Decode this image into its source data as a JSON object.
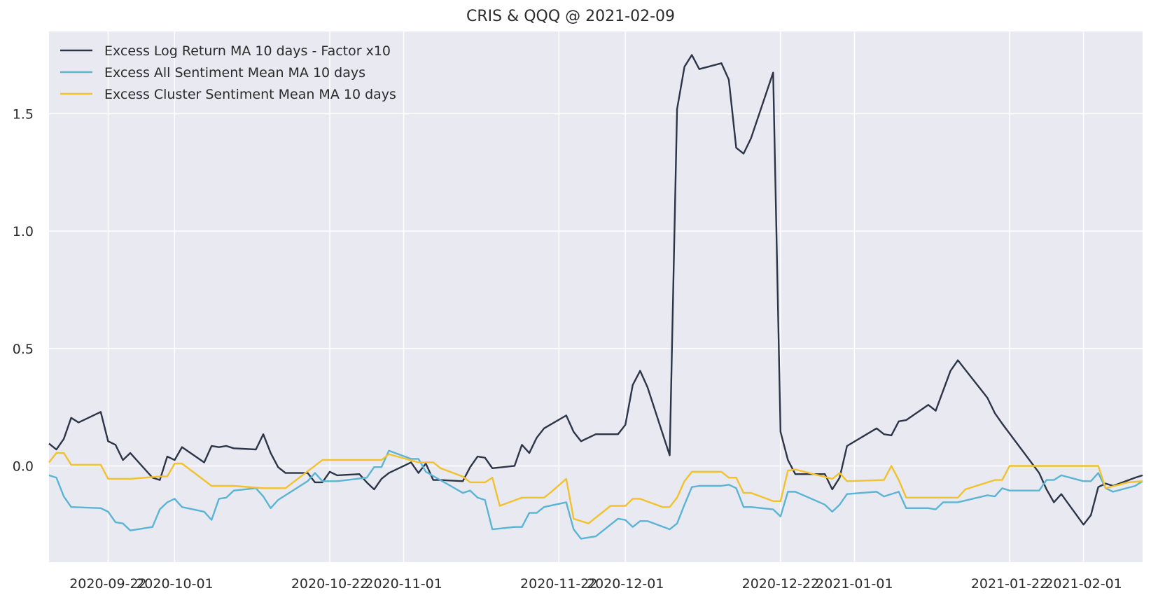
{
  "chart_data": {
    "type": "line",
    "title": "CRIS & QQQ @ 2021-02-09",
    "xlabel": "",
    "ylabel": "",
    "x_type": "date",
    "xlim": [
      "2020-09-14",
      "2021-02-09"
    ],
    "ylim": [
      -0.41,
      1.85
    ],
    "grid": true,
    "legend_position": "top-left",
    "x_ticks": [
      "2020-09-22",
      "2020-10-01",
      "2020-10-22",
      "2020-11-01",
      "2020-11-22",
      "2020-12-01",
      "2020-12-22",
      "2021-01-01",
      "2021-01-22",
      "2021-02-01"
    ],
    "y_ticks": [
      0.0,
      0.5,
      1.0,
      1.5
    ],
    "y_tick_labels": [
      "0.0",
      "0.5",
      "1.0",
      "1.5"
    ],
    "colors": {
      "plot_background": "#e9e9f1",
      "grid": "#ffffff"
    },
    "series": [
      {
        "name": "Excess Log Return MA 10 days - Factor x10",
        "color": "#2c3548",
        "points": [
          [
            "2020-09-14",
            0.095
          ],
          [
            "2020-09-15",
            0.07
          ],
          [
            "2020-09-16",
            0.115
          ],
          [
            "2020-09-17",
            0.205
          ],
          [
            "2020-09-18",
            0.185
          ],
          [
            "2020-09-21",
            0.23
          ],
          [
            "2020-09-22",
            0.105
          ],
          [
            "2020-09-23",
            0.09
          ],
          [
            "2020-09-24",
            0.025
          ],
          [
            "2020-09-25",
            0.055
          ],
          [
            "2020-09-28",
            -0.05
          ],
          [
            "2020-09-29",
            -0.06
          ],
          [
            "2020-09-30",
            0.04
          ],
          [
            "2020-10-01",
            0.025
          ],
          [
            "2020-10-02",
            0.08
          ],
          [
            "2020-10-05",
            0.015
          ],
          [
            "2020-10-06",
            0.085
          ],
          [
            "2020-10-07",
            0.08
          ],
          [
            "2020-10-08",
            0.085
          ],
          [
            "2020-10-09",
            0.075
          ],
          [
            "2020-10-12",
            0.07
          ],
          [
            "2020-10-13",
            0.135
          ],
          [
            "2020-10-14",
            0.055
          ],
          [
            "2020-10-15",
            -0.005
          ],
          [
            "2020-10-16",
            -0.03
          ],
          [
            "2020-10-19",
            -0.03
          ],
          [
            "2020-10-20",
            -0.07
          ],
          [
            "2020-10-21",
            -0.07
          ],
          [
            "2020-10-22",
            -0.025
          ],
          [
            "2020-10-23",
            -0.04
          ],
          [
            "2020-10-26",
            -0.035
          ],
          [
            "2020-10-27",
            -0.07
          ],
          [
            "2020-10-28",
            -0.1
          ],
          [
            "2020-10-29",
            -0.055
          ],
          [
            "2020-10-30",
            -0.03
          ],
          [
            "2020-11-02",
            0.015
          ],
          [
            "2020-11-03",
            -0.03
          ],
          [
            "2020-11-04",
            0.01
          ],
          [
            "2020-11-05",
            -0.06
          ],
          [
            "2020-11-06",
            -0.06
          ],
          [
            "2020-11-09",
            -0.065
          ],
          [
            "2020-11-10",
            -0.005
          ],
          [
            "2020-11-11",
            0.04
          ],
          [
            "2020-11-12",
            0.035
          ],
          [
            "2020-11-13",
            -0.01
          ],
          [
            "2020-11-16",
            0.0
          ],
          [
            "2020-11-17",
            0.09
          ],
          [
            "2020-11-18",
            0.055
          ],
          [
            "2020-11-19",
            0.12
          ],
          [
            "2020-11-20",
            0.16
          ],
          [
            "2020-11-23",
            0.215
          ],
          [
            "2020-11-24",
            0.145
          ],
          [
            "2020-11-25",
            0.105
          ],
          [
            "2020-11-27",
            0.135
          ],
          [
            "2020-11-30",
            0.135
          ],
          [
            "2020-12-01",
            0.175
          ],
          [
            "2020-12-02",
            0.345
          ],
          [
            "2020-12-03",
            0.405
          ],
          [
            "2020-12-04",
            0.335
          ],
          [
            "2020-12-07",
            0.045
          ],
          [
            "2020-12-08",
            1.52
          ],
          [
            "2020-12-09",
            1.7
          ],
          [
            "2020-12-10",
            1.75
          ],
          [
            "2020-12-11",
            1.69
          ],
          [
            "2020-12-14",
            1.715
          ],
          [
            "2020-12-15",
            1.645
          ],
          [
            "2020-12-16",
            1.355
          ],
          [
            "2020-12-17",
            1.33
          ],
          [
            "2020-12-18",
            1.395
          ],
          [
            "2020-12-21",
            1.675
          ],
          [
            "2020-12-22",
            0.145
          ],
          [
            "2020-12-23",
            0.025
          ],
          [
            "2020-12-24",
            -0.035
          ],
          [
            "2020-12-28",
            -0.035
          ],
          [
            "2020-12-29",
            -0.1
          ],
          [
            "2020-12-30",
            -0.05
          ],
          [
            "2020-12-31",
            0.085
          ],
          [
            "2021-01-04",
            0.16
          ],
          [
            "2021-01-05",
            0.135
          ],
          [
            "2021-01-06",
            0.13
          ],
          [
            "2021-01-07",
            0.19
          ],
          [
            "2021-01-08",
            0.195
          ],
          [
            "2021-01-11",
            0.26
          ],
          [
            "2021-01-12",
            0.235
          ],
          [
            "2021-01-13",
            0.32
          ],
          [
            "2021-01-14",
            0.405
          ],
          [
            "2021-01-15",
            0.45
          ],
          [
            "2021-01-19",
            0.29
          ],
          [
            "2021-01-20",
            0.225
          ],
          [
            "2021-01-21",
            0.18
          ],
          [
            "2021-01-26",
            -0.03
          ],
          [
            "2021-01-27",
            -0.1
          ],
          [
            "2021-01-28",
            -0.155
          ],
          [
            "2021-01-29",
            -0.12
          ],
          [
            "2021-02-01",
            -0.25
          ],
          [
            "2021-02-02",
            -0.21
          ],
          [
            "2021-02-03",
            -0.09
          ],
          [
            "2021-02-04",
            -0.075
          ],
          [
            "2021-02-05",
            -0.085
          ],
          [
            "2021-02-08",
            -0.05
          ],
          [
            "2021-02-09",
            -0.04
          ]
        ]
      },
      {
        "name": "Excess All Sentiment Mean MA 10 days",
        "color": "#5ab4d3",
        "points": [
          [
            "2020-09-14",
            -0.04
          ],
          [
            "2020-09-15",
            -0.05
          ],
          [
            "2020-09-16",
            -0.13
          ],
          [
            "2020-09-17",
            -0.175
          ],
          [
            "2020-09-21",
            -0.18
          ],
          [
            "2020-09-22",
            -0.195
          ],
          [
            "2020-09-23",
            -0.24
          ],
          [
            "2020-09-24",
            -0.245
          ],
          [
            "2020-09-25",
            -0.275
          ],
          [
            "2020-09-28",
            -0.26
          ],
          [
            "2020-09-29",
            -0.185
          ],
          [
            "2020-09-30",
            -0.155
          ],
          [
            "2020-10-01",
            -0.14
          ],
          [
            "2020-10-02",
            -0.175
          ],
          [
            "2020-10-05",
            -0.195
          ],
          [
            "2020-10-06",
            -0.23
          ],
          [
            "2020-10-07",
            -0.14
          ],
          [
            "2020-10-08",
            -0.135
          ],
          [
            "2020-10-09",
            -0.105
          ],
          [
            "2020-10-12",
            -0.095
          ],
          [
            "2020-10-13",
            -0.13
          ],
          [
            "2020-10-14",
            -0.18
          ],
          [
            "2020-10-15",
            -0.145
          ],
          [
            "2020-10-19",
            -0.065
          ],
          [
            "2020-10-20",
            -0.03
          ],
          [
            "2020-10-21",
            -0.065
          ],
          [
            "2020-10-22",
            -0.065
          ],
          [
            "2020-10-23",
            -0.065
          ],
          [
            "2020-10-27",
            -0.05
          ],
          [
            "2020-10-28",
            -0.005
          ],
          [
            "2020-10-29",
            -0.005
          ],
          [
            "2020-10-30",
            0.065
          ],
          [
            "2020-11-02",
            0.03
          ],
          [
            "2020-11-03",
            0.03
          ],
          [
            "2020-11-04",
            -0.025
          ],
          [
            "2020-11-09",
            -0.115
          ],
          [
            "2020-11-10",
            -0.105
          ],
          [
            "2020-11-11",
            -0.135
          ],
          [
            "2020-11-12",
            -0.145
          ],
          [
            "2020-11-13",
            -0.27
          ],
          [
            "2020-11-16",
            -0.26
          ],
          [
            "2020-11-17",
            -0.26
          ],
          [
            "2020-11-18",
            -0.2
          ],
          [
            "2020-11-19",
            -0.2
          ],
          [
            "2020-11-20",
            -0.175
          ],
          [
            "2020-11-23",
            -0.155
          ],
          [
            "2020-11-24",
            -0.27
          ],
          [
            "2020-11-25",
            -0.31
          ],
          [
            "2020-11-27",
            -0.3
          ],
          [
            "2020-11-30",
            -0.225
          ],
          [
            "2020-12-01",
            -0.23
          ],
          [
            "2020-12-02",
            -0.26
          ],
          [
            "2020-12-03",
            -0.235
          ],
          [
            "2020-12-04",
            -0.235
          ],
          [
            "2020-12-07",
            -0.27
          ],
          [
            "2020-12-08",
            -0.245
          ],
          [
            "2020-12-09",
            -0.165
          ],
          [
            "2020-12-10",
            -0.09
          ],
          [
            "2020-12-11",
            -0.085
          ],
          [
            "2020-12-14",
            -0.085
          ],
          [
            "2020-12-15",
            -0.08
          ],
          [
            "2020-12-16",
            -0.095
          ],
          [
            "2020-12-17",
            -0.175
          ],
          [
            "2020-12-18",
            -0.175
          ],
          [
            "2020-12-21",
            -0.185
          ],
          [
            "2020-12-22",
            -0.215
          ],
          [
            "2020-12-23",
            -0.11
          ],
          [
            "2020-12-24",
            -0.11
          ],
          [
            "2020-12-28",
            -0.165
          ],
          [
            "2020-12-29",
            -0.195
          ],
          [
            "2020-12-30",
            -0.165
          ],
          [
            "2020-12-31",
            -0.12
          ],
          [
            "2021-01-04",
            -0.11
          ],
          [
            "2021-01-05",
            -0.13
          ],
          [
            "2021-01-06",
            -0.12
          ],
          [
            "2021-01-07",
            -0.11
          ],
          [
            "2021-01-08",
            -0.18
          ],
          [
            "2021-01-11",
            -0.18
          ],
          [
            "2021-01-12",
            -0.185
          ],
          [
            "2021-01-13",
            -0.155
          ],
          [
            "2021-01-14",
            -0.155
          ],
          [
            "2021-01-15",
            -0.155
          ],
          [
            "2021-01-19",
            -0.125
          ],
          [
            "2021-01-20",
            -0.13
          ],
          [
            "2021-01-21",
            -0.095
          ],
          [
            "2021-01-22",
            -0.105
          ],
          [
            "2021-01-26",
            -0.105
          ],
          [
            "2021-01-27",
            -0.06
          ],
          [
            "2021-01-28",
            -0.06
          ],
          [
            "2021-01-29",
            -0.04
          ],
          [
            "2021-02-01",
            -0.065
          ],
          [
            "2021-02-02",
            -0.065
          ],
          [
            "2021-02-03",
            -0.03
          ],
          [
            "2021-02-04",
            -0.095
          ],
          [
            "2021-02-05",
            -0.11
          ],
          [
            "2021-02-08",
            -0.085
          ],
          [
            "2021-02-09",
            -0.065
          ]
        ]
      },
      {
        "name": "Excess Cluster Sentiment Mean MA 10 days",
        "color": "#f2c12e",
        "points": [
          [
            "2020-09-14",
            0.015
          ],
          [
            "2020-09-15",
            0.055
          ],
          [
            "2020-09-16",
            0.055
          ],
          [
            "2020-09-17",
            0.005
          ],
          [
            "2020-09-21",
            0.005
          ],
          [
            "2020-09-22",
            -0.055
          ],
          [
            "2020-09-25",
            -0.055
          ],
          [
            "2020-09-29",
            -0.045
          ],
          [
            "2020-09-30",
            -0.045
          ],
          [
            "2020-10-01",
            0.01
          ],
          [
            "2020-10-02",
            0.01
          ],
          [
            "2020-10-06",
            -0.085
          ],
          [
            "2020-10-09",
            -0.085
          ],
          [
            "2020-10-13",
            -0.095
          ],
          [
            "2020-10-16",
            -0.095
          ],
          [
            "2020-10-21",
            0.025
          ],
          [
            "2020-10-29",
            0.025
          ],
          [
            "2020-10-30",
            0.05
          ],
          [
            "2020-11-03",
            0.015
          ],
          [
            "2020-11-05",
            0.015
          ],
          [
            "2020-11-06",
            -0.01
          ],
          [
            "2020-11-09",
            -0.045
          ],
          [
            "2020-11-10",
            -0.07
          ],
          [
            "2020-11-12",
            -0.07
          ],
          [
            "2020-11-13",
            -0.05
          ],
          [
            "2020-11-14",
            -0.17
          ],
          [
            "2020-11-17",
            -0.135
          ],
          [
            "2020-11-20",
            -0.135
          ],
          [
            "2020-11-21",
            -0.11
          ],
          [
            "2020-11-23",
            -0.055
          ],
          [
            "2020-11-24",
            -0.225
          ],
          [
            "2020-11-26",
            -0.245
          ],
          [
            "2020-11-29",
            -0.17
          ],
          [
            "2020-12-01",
            -0.17
          ],
          [
            "2020-12-02",
            -0.14
          ],
          [
            "2020-12-03",
            -0.14
          ],
          [
            "2020-12-06",
            -0.175
          ],
          [
            "2020-12-07",
            -0.175
          ],
          [
            "2020-12-08",
            -0.135
          ],
          [
            "2020-12-09",
            -0.065
          ],
          [
            "2020-12-10",
            -0.025
          ],
          [
            "2020-12-14",
            -0.025
          ],
          [
            "2020-12-15",
            -0.05
          ],
          [
            "2020-12-16",
            -0.05
          ],
          [
            "2020-12-17",
            -0.115
          ],
          [
            "2020-12-18",
            -0.115
          ],
          [
            "2020-12-21",
            -0.15
          ],
          [
            "2020-12-22",
            -0.15
          ],
          [
            "2020-12-23",
            -0.02
          ],
          [
            "2020-12-24",
            -0.015
          ],
          [
            "2020-12-29",
            -0.055
          ],
          [
            "2020-12-30",
            -0.03
          ],
          [
            "2020-12-31",
            -0.065
          ],
          [
            "2021-01-05",
            -0.06
          ],
          [
            "2021-01-06",
            0.0
          ],
          [
            "2021-01-07",
            -0.06
          ],
          [
            "2021-01-08",
            -0.135
          ],
          [
            "2021-01-15",
            -0.135
          ],
          [
            "2021-01-16",
            -0.1
          ],
          [
            "2021-01-20",
            -0.06
          ],
          [
            "2021-01-21",
            -0.06
          ],
          [
            "2021-01-22",
            0.0
          ],
          [
            "2021-02-03",
            0.0
          ],
          [
            "2021-02-04",
            -0.095
          ],
          [
            "2021-02-07",
            -0.07
          ],
          [
            "2021-02-09",
            -0.065
          ]
        ]
      }
    ]
  }
}
